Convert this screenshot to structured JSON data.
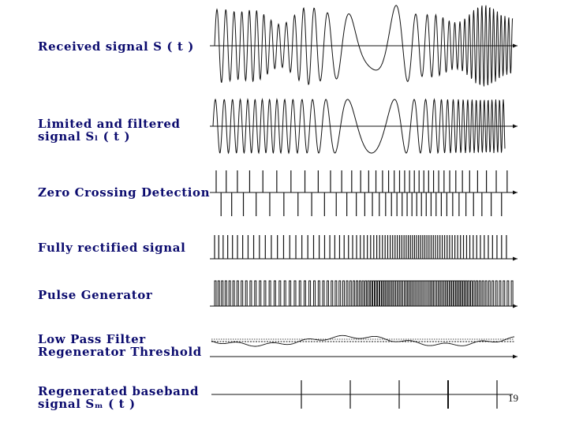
{
  "slide": {
    "page_number": "19"
  },
  "rows": [
    {
      "id": "received",
      "lines": [
        "Received signal S ( t )"
      ]
    },
    {
      "id": "limited",
      "lines": [
        "Limited and filtered",
        "signal Sₗ ( t )"
      ]
    },
    {
      "id": "zero-crossing",
      "lines": [
        "Zero Crossing Detection"
      ]
    },
    {
      "id": "rectified",
      "lines": [
        "Fully rectified signal"
      ]
    },
    {
      "id": "pulse",
      "lines": [
        "Pulse Generator"
      ]
    },
    {
      "id": "lpf",
      "lines": [
        "Low Pass Filter",
        "Regenerator Threshold"
      ]
    },
    {
      "id": "regenerated",
      "lines": [
        "Regenerated baseband",
        "signal Sₘ ( t )"
      ]
    }
  ],
  "colors": {
    "label_text": "#0b0b6e",
    "waveform": "#111111"
  }
}
